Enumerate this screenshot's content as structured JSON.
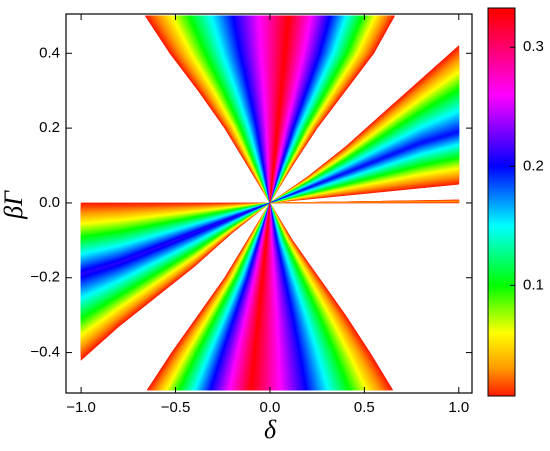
{
  "chart_data": {
    "type": "contour",
    "x_label": "δ",
    "y_label": "βΓ",
    "xlim": [
      -1.08,
      1.07
    ],
    "ylim": [
      -0.508,
      0.505
    ],
    "xticks": [
      {
        "value": -1.0,
        "label": "−1.0"
      },
      {
        "value": -0.5,
        "label": "−0.5"
      },
      {
        "value": 0,
        "label": "0.0"
      },
      {
        "value": 0.5,
        "label": "0.5"
      },
      {
        "value": 1.0,
        "label": "1.0"
      }
    ],
    "yticks": [
      {
        "value": -0.4,
        "label": "−0.4"
      },
      {
        "value": -0.2,
        "label": "−0.2"
      },
      {
        "value": 0,
        "label": "0.0"
      },
      {
        "value": 0.2,
        "label": "0.2"
      },
      {
        "value": 0.4,
        "label": "0.4"
      }
    ],
    "colormap": [
      {
        "value": 0,
        "color": "#ff1a00"
      },
      {
        "value": 0.03,
        "color": "#ff9900"
      },
      {
        "value": 0.06,
        "color": "#ffff00"
      },
      {
        "value": 0.1,
        "color": "#00ff00"
      },
      {
        "value": 0.15,
        "color": "#00ffff"
      },
      {
        "value": 0.2,
        "color": "#0000ff"
      },
      {
        "value": 0.26,
        "color": "#ff00ff"
      },
      {
        "value": 0.33,
        "color": "#ff0000"
      }
    ],
    "clim": [
      0.007,
      0.333
    ],
    "cticks": [
      0.1,
      0.2,
      0.3
    ],
    "regions": [
      {
        "peak": 0.33,
        "edge_a": [
          [
            0,
            0
          ],
          [
            -0.12,
            0.1
          ],
          [
            -0.24,
            0.2
          ],
          [
            -0.38,
            0.3
          ],
          [
            -0.53,
            0.4
          ],
          [
            -0.66,
            0.5
          ]
        ],
        "edge_b": [
          [
            0,
            0
          ],
          [
            0.12,
            0.1
          ],
          [
            0.25,
            0.2
          ],
          [
            0.4,
            0.3
          ],
          [
            0.55,
            0.4
          ],
          [
            0.66,
            0.5
          ]
        ],
        "ridge": [
          [
            0,
            0
          ],
          [
            0.02,
            0.1
          ],
          [
            0.04,
            0.2
          ],
          [
            0.06,
            0.3
          ],
          [
            0.08,
            0.4
          ],
          [
            0.1,
            0.5
          ]
        ]
      },
      {
        "peak": 0.33,
        "edge_a": [
          [
            0,
            0
          ],
          [
            -0.12,
            -0.1
          ],
          [
            -0.24,
            -0.2
          ],
          [
            -0.38,
            -0.3
          ],
          [
            -0.52,
            -0.4
          ],
          [
            -0.65,
            -0.5
          ]
        ],
        "edge_b": [
          [
            0,
            0
          ],
          [
            0.12,
            -0.1
          ],
          [
            0.26,
            -0.2
          ],
          [
            0.4,
            -0.3
          ],
          [
            0.53,
            -0.4
          ],
          [
            0.65,
            -0.5
          ]
        ],
        "ridge": [
          [
            0,
            0
          ],
          [
            -0.02,
            -0.1
          ],
          [
            -0.04,
            -0.2
          ],
          [
            -0.06,
            -0.3
          ],
          [
            -0.08,
            -0.4
          ],
          [
            -0.1,
            -0.5
          ]
        ]
      },
      {
        "peak": 0.2,
        "edge_a": [
          [
            0,
            0
          ],
          [
            0.2,
            0.07
          ],
          [
            0.4,
            0.15
          ],
          [
            0.6,
            0.24
          ],
          [
            0.8,
            0.33
          ],
          [
            1,
            0.42
          ]
        ],
        "edge_b": [
          [
            0,
            0
          ],
          [
            0.2,
            0.01
          ],
          [
            0.4,
            0.02
          ],
          [
            0.6,
            0.03
          ],
          [
            0.8,
            0.04
          ],
          [
            1,
            0.05
          ]
        ],
        "ridge": [
          [
            0,
            0
          ],
          [
            0.2,
            0.04
          ],
          [
            0.4,
            0.08
          ],
          [
            0.6,
            0.12
          ],
          [
            0.8,
            0.16
          ],
          [
            1,
            0.19
          ]
        ]
      },
      {
        "peak": 0.21,
        "edge_a": [
          [
            0,
            0
          ],
          [
            -0.2,
            0
          ],
          [
            -0.4,
            0
          ],
          [
            -0.6,
            0
          ],
          [
            -0.8,
            0
          ],
          [
            -1,
            0
          ]
        ],
        "edge_b": [
          [
            0,
            0
          ],
          [
            -0.2,
            -0.08
          ],
          [
            -0.4,
            -0.17
          ],
          [
            -0.6,
            -0.25
          ],
          [
            -0.8,
            -0.33
          ],
          [
            -1,
            -0.42
          ]
        ],
        "ridge": [
          [
            0,
            0
          ],
          [
            -0.2,
            -0.04
          ],
          [
            -0.4,
            -0.08
          ],
          [
            -0.6,
            -0.12
          ],
          [
            -0.8,
            -0.16
          ],
          [
            -1,
            -0.19
          ]
        ]
      },
      {
        "peak": 0.03,
        "edge_a": [
          [
            0,
            0
          ],
          [
            1,
            0
          ]
        ],
        "edge_b": [
          [
            0,
            0
          ],
          [
            1,
            0.008
          ]
        ],
        "ridge": [
          [
            0,
            0
          ],
          [
            1,
            0.004
          ]
        ]
      }
    ]
  }
}
